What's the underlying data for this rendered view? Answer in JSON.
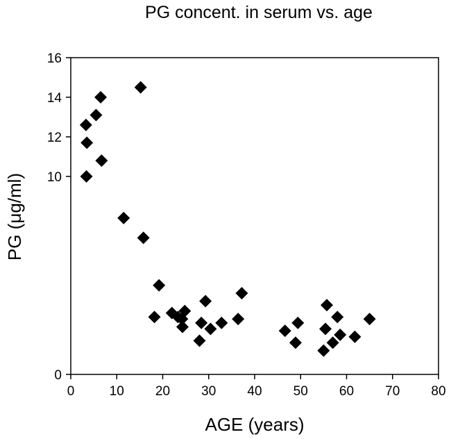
{
  "chart_data": {
    "type": "scatter",
    "title": "PG concent. in serum vs. age",
    "xlabel": "AGE (years)",
    "ylabel": "PG (μg/ml)",
    "xlim": [
      0,
      80
    ],
    "ylim": [
      0,
      16
    ],
    "x_ticks": [
      0,
      10,
      20,
      30,
      40,
      50,
      60,
      70,
      80
    ],
    "y_ticks": [
      0,
      10,
      12,
      14,
      16
    ],
    "x_tick_labels": [
      "0",
      "10",
      "20",
      "30",
      "40",
      "50",
      "60",
      "70",
      "80"
    ],
    "y_tick_labels": [
      "0",
      "10",
      "12",
      "14",
      "16"
    ],
    "grid": false,
    "legend": "none",
    "marker": "diamond",
    "marker_color": "#000000",
    "points": [
      {
        "x": 3.3,
        "y": 12.6
      },
      {
        "x": 3.5,
        "y": 11.7
      },
      {
        "x": 3.4,
        "y": 10.0
      },
      {
        "x": 5.5,
        "y": 13.1
      },
      {
        "x": 6.5,
        "y": 14.0
      },
      {
        "x": 6.7,
        "y": 10.8
      },
      {
        "x": 11.5,
        "y": 7.9
      },
      {
        "x": 15.2,
        "y": 14.5
      },
      {
        "x": 15.8,
        "y": 6.9
      },
      {
        "x": 18.2,
        "y": 2.9
      },
      {
        "x": 19.2,
        "y": 4.5
      },
      {
        "x": 22.0,
        "y": 3.1
      },
      {
        "x": 23.3,
        "y": 2.9
      },
      {
        "x": 24.2,
        "y": 2.8
      },
      {
        "x": 24.3,
        "y": 2.4
      },
      {
        "x": 24.8,
        "y": 3.2
      },
      {
        "x": 28.0,
        "y": 1.7
      },
      {
        "x": 28.4,
        "y": 2.6
      },
      {
        "x": 29.3,
        "y": 3.7
      },
      {
        "x": 30.4,
        "y": 2.3
      },
      {
        "x": 32.8,
        "y": 2.6
      },
      {
        "x": 36.4,
        "y": 2.8
      },
      {
        "x": 37.2,
        "y": 4.1
      },
      {
        "x": 46.6,
        "y": 2.2
      },
      {
        "x": 48.9,
        "y": 1.6
      },
      {
        "x": 49.4,
        "y": 2.6
      },
      {
        "x": 55.0,
        "y": 1.2
      },
      {
        "x": 55.4,
        "y": 2.3
      },
      {
        "x": 55.7,
        "y": 3.5
      },
      {
        "x": 57.0,
        "y": 1.6
      },
      {
        "x": 58.0,
        "y": 2.9
      },
      {
        "x": 58.6,
        "y": 2.0
      },
      {
        "x": 61.8,
        "y": 1.9
      },
      {
        "x": 65.0,
        "y": 2.8
      }
    ]
  }
}
